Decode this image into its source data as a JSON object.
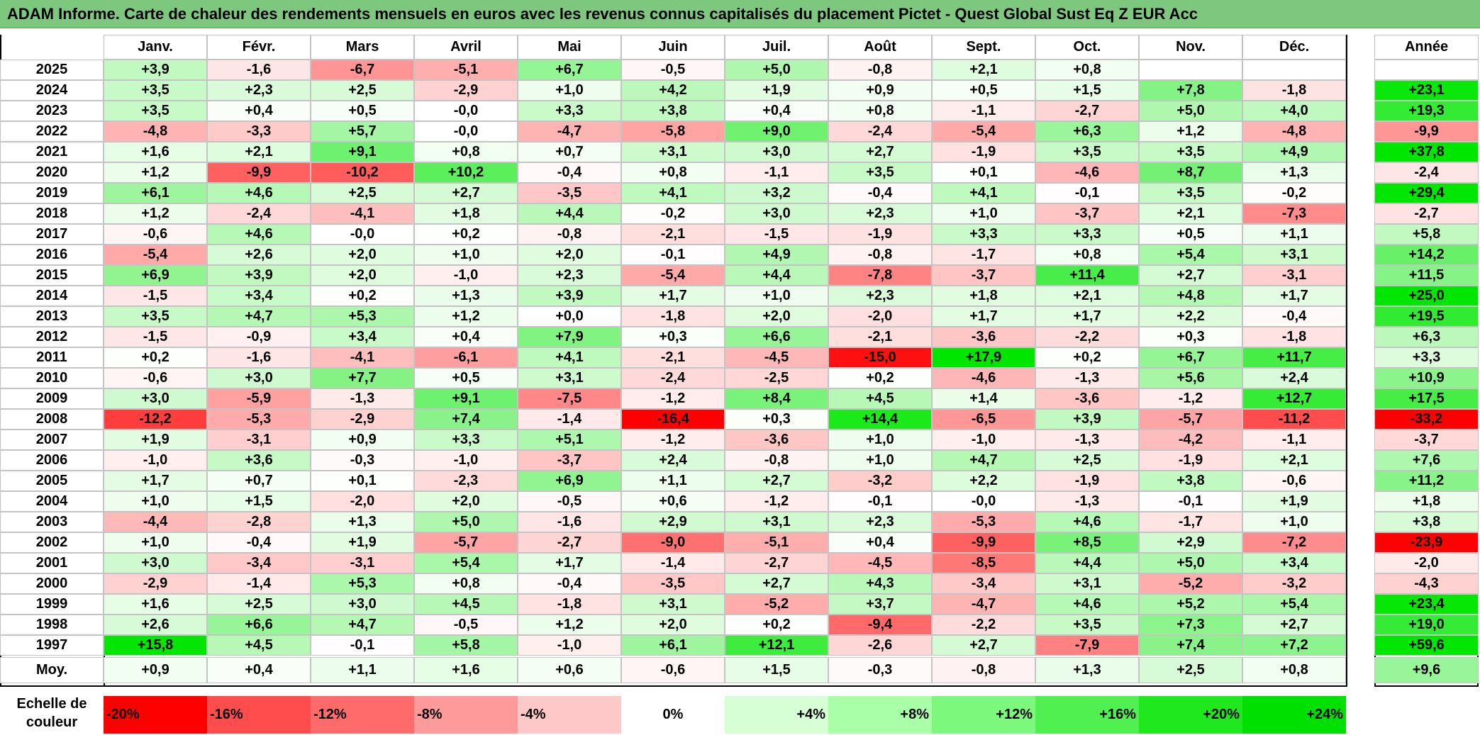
{
  "title": "ADAM Informe. Carte de chaleur des rendements mensuels en euros avec les revenus connus capitalisés du placement Pictet - Quest Global Sust Eq Z EUR Acc",
  "chart_data": {
    "type": "heatmap",
    "title": "ADAM Informe. Carte de chaleur des rendements mensuels en euros avec les revenus connus capitalisés du placement Pictet - Quest Global Sust Eq Z EUR Acc",
    "months": [
      "Janv.",
      "Févr.",
      "Mars",
      "Avril",
      "Mai",
      "Juin",
      "Juil.",
      "Août",
      "Sept.",
      "Oct.",
      "Nov.",
      "Déc."
    ],
    "annual_header": "Année",
    "rows": [
      {
        "year": "2025",
        "values": [
          "+3,9",
          "-1,6",
          "-6,7",
          "-5,1",
          "+6,7",
          "-0,5",
          "+5,0",
          "-0,8",
          "+2,1",
          "+0,8",
          "",
          ""
        ],
        "annual": ""
      },
      {
        "year": "2024",
        "values": [
          "+3,5",
          "+2,3",
          "+2,5",
          "-2,9",
          "+1,0",
          "+4,2",
          "+1,9",
          "+0,9",
          "+0,5",
          "+1,5",
          "+7,8",
          "-1,8"
        ],
        "annual": "+23,1"
      },
      {
        "year": "2023",
        "values": [
          "+3,5",
          "+0,4",
          "+0,5",
          "-0,0",
          "+3,3",
          "+3,8",
          "+0,4",
          "+0,8",
          "-1,1",
          "-2,7",
          "+5,0",
          "+4,0"
        ],
        "annual": "+19,3"
      },
      {
        "year": "2022",
        "values": [
          "-4,8",
          "-3,3",
          "+5,7",
          "-0,0",
          "-4,7",
          "-5,8",
          "+9,0",
          "-2,4",
          "-5,4",
          "+6,3",
          "+1,2",
          "-4,8"
        ],
        "annual": "-9,9"
      },
      {
        "year": "2021",
        "values": [
          "+1,6",
          "+2,1",
          "+9,1",
          "+0,8",
          "+0,7",
          "+3,1",
          "+3,0",
          "+2,7",
          "-1,9",
          "+3,5",
          "+3,5",
          "+4,9"
        ],
        "annual": "+37,8"
      },
      {
        "year": "2020",
        "values": [
          "+1,2",
          "-9,9",
          "-10,2",
          "+10,2",
          "-0,4",
          "+0,8",
          "-1,1",
          "+3,5",
          "+0,1",
          "-4,6",
          "+8,7",
          "+1,3"
        ],
        "annual": "-2,4"
      },
      {
        "year": "2019",
        "values": [
          "+6,1",
          "+4,6",
          "+2,5",
          "+2,7",
          "-3,5",
          "+4,1",
          "+3,2",
          "-0,4",
          "+4,1",
          "-0,1",
          "+3,5",
          "-0,2"
        ],
        "annual": "+29,4"
      },
      {
        "year": "2018",
        "values": [
          "+1,2",
          "-2,4",
          "-4,1",
          "+1,8",
          "+4,4",
          "-0,2",
          "+3,0",
          "+2,3",
          "+1,0",
          "-3,7",
          "+2,1",
          "-7,3"
        ],
        "annual": "-2,7"
      },
      {
        "year": "2017",
        "values": [
          "-0,6",
          "+4,6",
          "-0,0",
          "+0,2",
          "-0,8",
          "-2,1",
          "-1,5",
          "-1,9",
          "+3,3",
          "+3,3",
          "+0,5",
          "+1,1"
        ],
        "annual": "+5,8"
      },
      {
        "year": "2016",
        "values": [
          "-5,4",
          "+2,6",
          "+2,0",
          "+1,0",
          "+2,0",
          "-0,1",
          "+4,9",
          "-0,8",
          "-1,7",
          "+0,8",
          "+5,4",
          "+3,1"
        ],
        "annual": "+14,2"
      },
      {
        "year": "2015",
        "values": [
          "+6,9",
          "+3,9",
          "+2,0",
          "-1,0",
          "+2,3",
          "-5,4",
          "+4,4",
          "-7,8",
          "-3,7",
          "+11,4",
          "+2,7",
          "-3,1"
        ],
        "annual": "+11,5"
      },
      {
        "year": "2014",
        "values": [
          "-1,5",
          "+3,4",
          "+0,2",
          "+1,3",
          "+3,9",
          "+1,7",
          "+1,0",
          "+2,3",
          "+1,8",
          "+2,1",
          "+4,8",
          "+1,7"
        ],
        "annual": "+25,0"
      },
      {
        "year": "2013",
        "values": [
          "+3,5",
          "+4,7",
          "+5,3",
          "+1,2",
          "+0,0",
          "-1,8",
          "+2,0",
          "-2,0",
          "+1,7",
          "+1,7",
          "+2,2",
          "-0,4"
        ],
        "annual": "+19,5"
      },
      {
        "year": "2012",
        "values": [
          "-1,5",
          "-0,9",
          "+3,4",
          "+0,4",
          "+7,9",
          "+0,3",
          "+6,6",
          "-2,1",
          "-3,6",
          "-2,2",
          "+0,3",
          "-1,8"
        ],
        "annual": "+6,3"
      },
      {
        "year": "2011",
        "values": [
          "+0,2",
          "-1,6",
          "-4,1",
          "-6,1",
          "+4,1",
          "-2,1",
          "-4,5",
          "-15,0",
          "+17,9",
          "+0,2",
          "+6,7",
          "+11,7"
        ],
        "annual": "+3,3"
      },
      {
        "year": "2010",
        "values": [
          "-0,6",
          "+3,0",
          "+7,7",
          "+0,5",
          "+3,1",
          "-2,4",
          "-2,5",
          "+0,2",
          "-4,6",
          "-1,3",
          "+5,6",
          "+2,4"
        ],
        "annual": "+10,9"
      },
      {
        "year": "2009",
        "values": [
          "+3,0",
          "-5,9",
          "-1,3",
          "+9,1",
          "-7,5",
          "-1,2",
          "+8,4",
          "+4,5",
          "+1,4",
          "-3,6",
          "-1,2",
          "+12,7"
        ],
        "annual": "+17,5"
      },
      {
        "year": "2008",
        "values": [
          "-12,2",
          "-5,3",
          "-2,9",
          "+7,4",
          "-1,4",
          "-16,4",
          "+0,3",
          "+14,4",
          "-6,5",
          "+3,9",
          "-5,7",
          "-11,2"
        ],
        "annual": "-33,2"
      },
      {
        "year": "2007",
        "values": [
          "+1,9",
          "-3,1",
          "+0,9",
          "+3,3",
          "+5,1",
          "-1,2",
          "-3,6",
          "+1,0",
          "-1,0",
          "-1,3",
          "-4,2",
          "-1,1"
        ],
        "annual": "-3,7"
      },
      {
        "year": "2006",
        "values": [
          "-1,0",
          "+3,6",
          "-0,3",
          "-1,0",
          "-3,7",
          "+2,4",
          "-0,8",
          "+1,0",
          "+4,7",
          "+2,5",
          "-1,9",
          "+2,1"
        ],
        "annual": "+7,6"
      },
      {
        "year": "2005",
        "values": [
          "+1,7",
          "+0,7",
          "+0,1",
          "-2,3",
          "+6,9",
          "+1,1",
          "+2,7",
          "-3,2",
          "+2,2",
          "-1,9",
          "+3,8",
          "-0,6"
        ],
        "annual": "+11,2"
      },
      {
        "year": "2004",
        "values": [
          "+1,0",
          "+1,5",
          "-2,0",
          "+2,0",
          "-0,5",
          "+0,6",
          "-1,2",
          "-0,1",
          "-0,0",
          "-1,3",
          "-0,1",
          "+1,9"
        ],
        "annual": "+1,8"
      },
      {
        "year": "2003",
        "values": [
          "-4,4",
          "-2,8",
          "+1,3",
          "+5,0",
          "-1,6",
          "+2,9",
          "+3,1",
          "+2,3",
          "-5,3",
          "+4,6",
          "-1,7",
          "+1,0"
        ],
        "annual": "+3,8"
      },
      {
        "year": "2002",
        "values": [
          "+1,0",
          "-0,4",
          "+1,9",
          "-5,7",
          "-2,7",
          "-9,0",
          "-5,1",
          "+0,4",
          "-9,9",
          "+8,5",
          "+2,9",
          "-7,2"
        ],
        "annual": "-23,9"
      },
      {
        "year": "2001",
        "values": [
          "+3,0",
          "-3,4",
          "-3,1",
          "+5,4",
          "+1,7",
          "-1,4",
          "-2,7",
          "-4,5",
          "-8,5",
          "+4,4",
          "+5,0",
          "+3,4"
        ],
        "annual": "-2,0"
      },
      {
        "year": "2000",
        "values": [
          "-2,9",
          "-1,4",
          "+5,3",
          "+0,8",
          "-0,4",
          "-3,5",
          "+2,7",
          "+4,3",
          "-3,4",
          "+3,1",
          "-5,2",
          "-3,2"
        ],
        "annual": "-4,3"
      },
      {
        "year": "1999",
        "values": [
          "+1,6",
          "+2,5",
          "+3,0",
          "+4,5",
          "-1,8",
          "+3,1",
          "-5,2",
          "+3,7",
          "-4,7",
          "+4,6",
          "+5,2",
          "+5,4"
        ],
        "annual": "+23,4"
      },
      {
        "year": "1998",
        "values": [
          "+2,6",
          "+6,6",
          "+4,7",
          "-0,5",
          "+1,2",
          "+2,0",
          "+0,2",
          "-9,4",
          "-2,2",
          "+3,5",
          "+7,3",
          "+2,7"
        ],
        "annual": "+19,0"
      },
      {
        "year": "1997",
        "values": [
          "+15,8",
          "+4,5",
          "-0,1",
          "+5,8",
          "-1,0",
          "+6,1",
          "+12,1",
          "-2,6",
          "+2,7",
          "-7,9",
          "+7,4",
          "+7,2"
        ],
        "annual": "+59,6"
      }
    ],
    "average": {
      "label": "Moy.",
      "values": [
        "+0,9",
        "+0,4",
        "+1,1",
        "+1,6",
        "+0,6",
        "-0,6",
        "+1,5",
        "-0,3",
        "-0,8",
        "+1,3",
        "+2,5",
        "+0,8"
      ],
      "annual": "+9,6"
    },
    "scale": {
      "label_line1": "Echelle de",
      "label_line2": "couleur",
      "entries": [
        {
          "label": "-20%",
          "value": -20
        },
        {
          "label": "-16%",
          "value": -16
        },
        {
          "label": "-12%",
          "value": -12
        },
        {
          "label": "-8%",
          "value": -8
        },
        {
          "label": "-4%",
          "value": -4
        },
        {
          "label": "0%",
          "value": 0
        },
        {
          "label": "+4%",
          "value": 4
        },
        {
          "label": "+8%",
          "value": 8
        },
        {
          "label": "+12%",
          "value": 12
        },
        {
          "label": "+16%",
          "value": 16
        },
        {
          "label": "+20%",
          "value": 20
        },
        {
          "label": "+24%",
          "value": 24
        }
      ]
    },
    "colors": {
      "title_bar": "#7dc77f",
      "negative_max": "#ff0000",
      "neutral": "#ffffff",
      "positive_max": "#00e000"
    }
  }
}
